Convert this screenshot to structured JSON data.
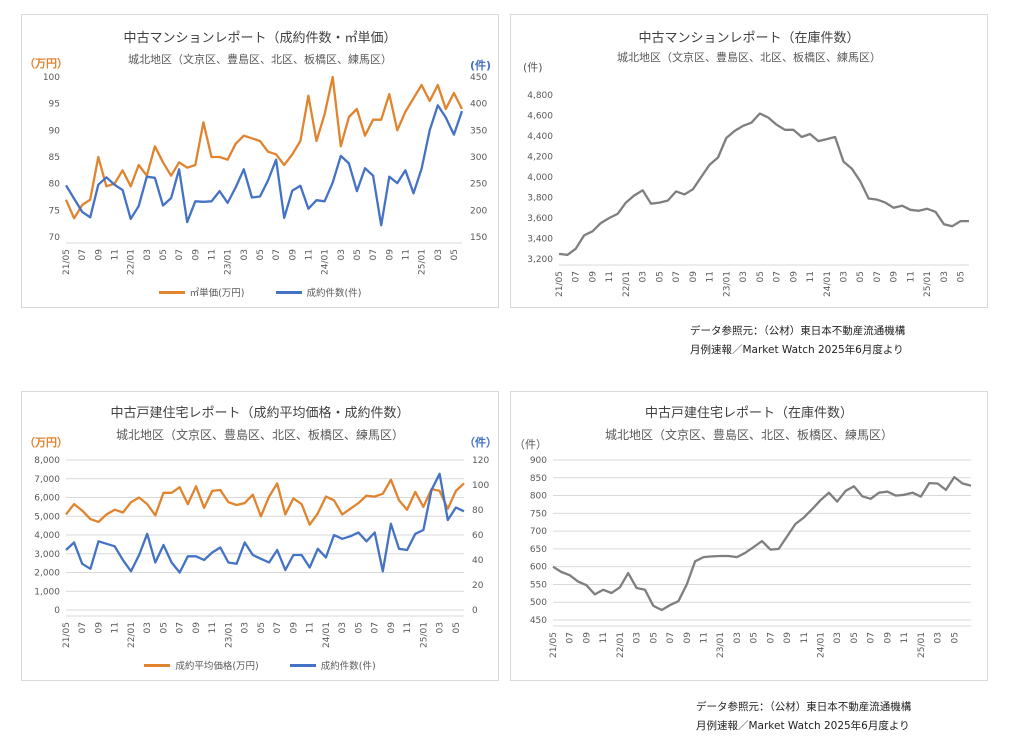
{
  "colors": {
    "orange": "#E0842F",
    "blue": "#4472C4",
    "gray": "#7F7F7F",
    "grid": "#D9D9D9"
  },
  "source": {
    "line1": "データ参照元：（公材）東日本不動産流通機構",
    "line2": "月例速報／Market Watch 2025年6月度より"
  },
  "panels": {
    "p1": {
      "title": "中古マンションレポート（成約件数・㎡単価）",
      "subtitle": "城北地区（文京区、豊島区、北区、板橋区、練馬区）",
      "left_unit": "（万円）",
      "right_unit": "(件)",
      "legend": [
        "㎡単価(万円)",
        "成約件数(件)"
      ]
    },
    "p2": {
      "title": "中古マンションレポート（在庫件数）",
      "subtitle": "城北地区（文京区、豊島区、北区、板橋区、練馬区）",
      "left_unit": "(件)"
    },
    "p3": {
      "title": "中古戸建住宅レポート（成約平均価格・成約件数）",
      "subtitle": "城北地区（文京区、豊島区、北区、板橋区、練馬区）",
      "left_unit": "（万円）",
      "right_unit": "（件）",
      "legend": [
        "成約平均価格(万円)",
        "成約件数(件)"
      ]
    },
    "p4": {
      "title": "中古戸建住宅レポート（在庫件数）",
      "subtitle": "城北地区（文京区、豊島区、北区、板橋区、練馬区）",
      "left_unit": "（件）"
    }
  },
  "chart_data": [
    {
      "type": "line",
      "title": "中古マンションレポート（成約件数・㎡単価）",
      "x_tick_labels": [
        "21/05",
        "07",
        "09",
        "11",
        "22/01",
        "03",
        "05",
        "07",
        "09",
        "11",
        "23/01",
        "03",
        "05",
        "07",
        "09",
        "11",
        "24/01",
        "03",
        "05",
        "07",
        "09",
        "11",
        "25/01",
        "03",
        "05"
      ],
      "ylim": [
        70,
        100
      ],
      "y2lim": [
        150,
        450
      ],
      "y_ticks": [
        70,
        75,
        80,
        85,
        90,
        95,
        100
      ],
      "y2_ticks": [
        150,
        200,
        250,
        300,
        350,
        400,
        450
      ],
      "series": [
        {
          "name": "㎡単価(万円)",
          "axis": "left",
          "color": "#E0842F",
          "values": [
            77,
            73.5,
            76,
            77,
            85,
            79.5,
            80,
            82.5,
            79.5,
            83.5,
            81.5,
            87,
            84,
            81.5,
            84,
            83,
            83.5,
            91.5,
            85,
            85,
            84.5,
            87.5,
            89,
            88.5,
            88,
            86,
            85.5,
            83.5,
            85.5,
            88,
            96.5,
            88,
            93,
            100,
            87,
            92.5,
            94,
            89,
            92,
            92,
            96.8,
            90,
            93.5,
            96,
            98.5,
            95.5,
            98.5,
            94,
            97,
            94
          ]
        },
        {
          "name": "成約件数(件)",
          "axis": "right",
          "color": "#4472C4",
          "values": [
            247,
            222,
            197,
            187,
            248,
            262,
            248,
            238,
            184,
            208,
            263,
            261,
            209,
            223,
            277,
            178,
            217,
            216,
            217,
            236,
            214,
            243,
            277,
            224,
            226,
            256,
            295,
            186,
            237,
            246,
            203,
            219,
            217,
            252,
            302,
            288,
            236,
            279,
            265,
            172,
            263,
            251,
            275,
            232,
            278,
            350,
            397,
            374,
            342,
            386
          ]
        }
      ]
    },
    {
      "type": "line",
      "title": "中古マンションレポート（在庫件数）",
      "x_tick_labels": [
        "21/05",
        "07",
        "09",
        "11",
        "22/01",
        "03",
        "05",
        "07",
        "09",
        "11",
        "23/01",
        "03",
        "05",
        "07",
        "09",
        "11",
        "24/01",
        "03",
        "05",
        "07",
        "09",
        "11",
        "25/01",
        "03",
        "05"
      ],
      "ylim": [
        3200,
        4800
      ],
      "y_ticks": [
        3200,
        3400,
        3600,
        3800,
        4000,
        4200,
        4400,
        4600,
        4800
      ],
      "series": [
        {
          "name": "在庫件数",
          "axis": "left",
          "color": "#7F7F7F",
          "values": [
            3250,
            3240,
            3300,
            3430,
            3470,
            3550,
            3600,
            3640,
            3750,
            3820,
            3870,
            3740,
            3750,
            3770,
            3860,
            3830,
            3880,
            4000,
            4120,
            4190,
            4380,
            4450,
            4500,
            4530,
            4620,
            4580,
            4510,
            4460,
            4460,
            4390,
            4420,
            4350,
            4370,
            4390,
            4150,
            4080,
            3960,
            3790,
            3780,
            3750,
            3700,
            3720,
            3680,
            3670,
            3690,
            3660,
            3540,
            3520,
            3570,
            3570
          ]
        }
      ]
    },
    {
      "type": "line",
      "title": "中古戸建住宅レポート（成約平均価格・成約件数）",
      "x_tick_labels": [
        "21/05",
        "07",
        "09",
        "11",
        "22/01",
        "03",
        "05",
        "07",
        "09",
        "11",
        "23/01",
        "03",
        "05",
        "07",
        "09",
        "11",
        "24/01",
        "03",
        "05",
        "07",
        "09",
        "11",
        "25/01",
        "03",
        "05"
      ],
      "ylim": [
        0,
        8000
      ],
      "y2lim": [
        0,
        120
      ],
      "y_ticks": [
        0,
        1000,
        2000,
        3000,
        4000,
        5000,
        6000,
        7000,
        8000
      ],
      "y2_ticks": [
        0,
        20,
        40,
        60,
        80,
        100,
        120
      ],
      "series": [
        {
          "name": "成約平均価格(万円)",
          "axis": "left",
          "color": "#E0842F",
          "values": [
            5100,
            5650,
            5300,
            4850,
            4700,
            5100,
            5350,
            5200,
            5750,
            6000,
            5650,
            5050,
            6250,
            6250,
            6550,
            5650,
            6600,
            5450,
            6350,
            6400,
            5750,
            5600,
            5700,
            6150,
            5000,
            6050,
            6750,
            5100,
            5950,
            5650,
            4550,
            5150,
            6050,
            5850,
            5100,
            5400,
            5700,
            6100,
            6050,
            6200,
            6950,
            5850,
            5350,
            6300,
            5500,
            6450,
            6350,
            5400,
            6350,
            6750
          ]
        },
        {
          "name": "成約件数(件)",
          "axis": "right",
          "color": "#4472C4",
          "values": [
            48,
            54,
            37,
            33,
            55,
            53,
            51,
            40,
            31,
            44,
            61,
            38,
            52,
            38,
            30,
            43,
            43,
            40,
            46,
            50,
            38,
            37,
            54,
            44,
            41,
            38,
            48,
            32,
            44,
            44,
            34,
            49,
            42,
            60,
            57,
            59,
            62,
            55,
            62,
            31,
            69,
            49,
            48,
            61,
            64,
            96,
            109,
            72,
            82,
            79
          ]
        }
      ]
    },
    {
      "type": "line",
      "title": "中古戸建住宅レポート（在庫件数）",
      "x_tick_labels": [
        "21/05",
        "07",
        "09",
        "11",
        "22/01",
        "03",
        "05",
        "07",
        "09",
        "11",
        "23/01",
        "03",
        "05",
        "07",
        "09",
        "11",
        "24/01",
        "03",
        "05",
        "07",
        "09",
        "11",
        "25/01",
        "03",
        "05"
      ],
      "ylim": [
        450,
        900
      ],
      "y_ticks": [
        450,
        500,
        550,
        600,
        650,
        700,
        750,
        800,
        850,
        900
      ],
      "series": [
        {
          "name": "在庫件数",
          "axis": "left",
          "color": "#7F7F7F",
          "values": [
            600,
            585,
            576,
            558,
            548,
            522,
            535,
            526,
            542,
            582,
            540,
            535,
            490,
            478,
            492,
            503,
            550,
            615,
            627,
            629,
            630,
            630,
            627,
            639,
            655,
            672,
            648,
            650,
            685,
            720,
            738,
            762,
            787,
            808,
            783,
            813,
            826,
            798,
            791,
            808,
            811,
            800,
            802,
            808,
            797,
            835,
            834,
            816,
            852,
            834,
            828
          ]
        }
      ]
    }
  ]
}
